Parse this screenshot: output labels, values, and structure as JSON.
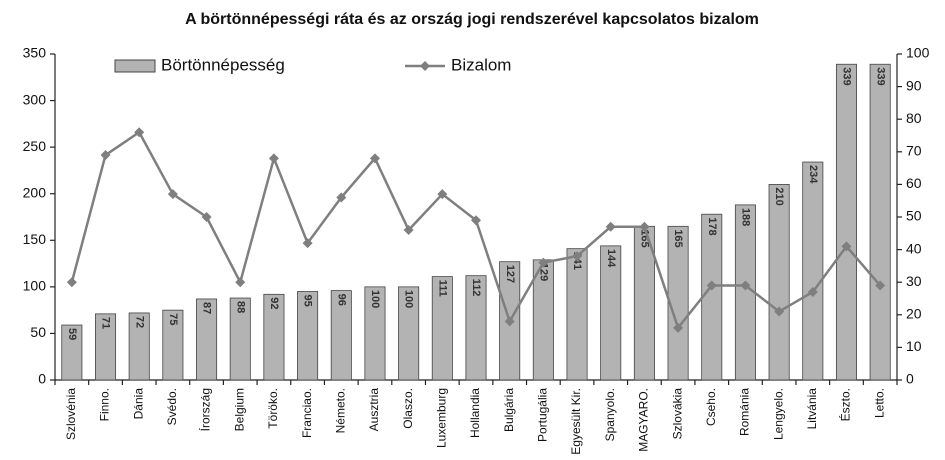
{
  "chart_data": {
    "type": "bar_line",
    "title": "A börtönnépességi ráta és az ország jogi rendszerével kapcsolatos bizalom",
    "categories": [
      "Szlovénia",
      "Finno.",
      "Dánia",
      "Svédo.",
      "Írország",
      "Belgium",
      "Töröko.",
      "Franciao.",
      "Németo.",
      "Ausztria",
      "Olaszo.",
      "Luxemburg",
      "Hollandia",
      "Bulgária",
      "Portugália",
      "Egyesült Kir.",
      "Spanyolo.",
      "MAGYARO.",
      "Szlovákia",
      "Cseho.",
      "Románia",
      "Lengyelo.",
      "Litvánia",
      "Észto.",
      "Letto."
    ],
    "series": [
      {
        "name": "Börtönnépesség",
        "type": "bar",
        "color": "#b3b3b3",
        "axis": "y",
        "values": [
          59,
          71,
          72,
          75,
          87,
          88,
          92,
          95,
          96,
          100,
          100,
          111,
          112,
          127,
          129,
          141,
          144,
          165,
          165,
          178,
          188,
          210,
          234,
          339,
          339
        ]
      },
      {
        "name": "Bizalom",
        "type": "line",
        "color": "#7f7f7f",
        "axis": "y2",
        "values": [
          30,
          69,
          76,
          57,
          50,
          30,
          68,
          42,
          56,
          68,
          46,
          57,
          49,
          18,
          36,
          38,
          47,
          47,
          16,
          29,
          29,
          21,
          27,
          41,
          29
        ]
      }
    ],
    "ylim": [
      0,
      350
    ],
    "yticks": [
      0,
      50,
      100,
      150,
      200,
      250,
      300,
      350
    ],
    "y2lim": [
      0,
      100
    ],
    "y2ticks": [
      0,
      10,
      20,
      30,
      40,
      50,
      60,
      70,
      80,
      90,
      100
    ],
    "legend": "top",
    "grid": false
  }
}
